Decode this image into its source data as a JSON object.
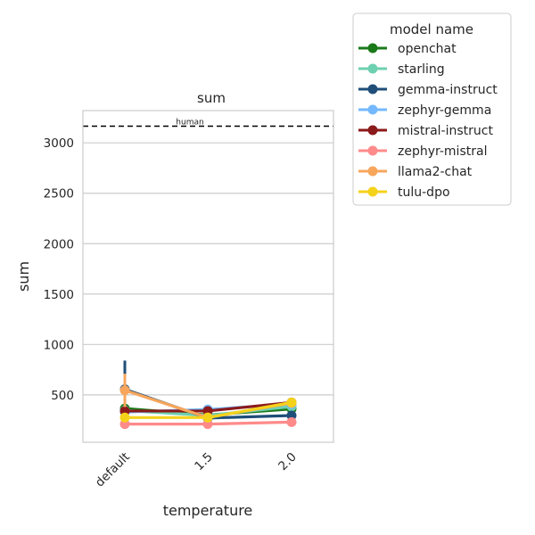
{
  "chart_data": {
    "type": "line",
    "title": "sum",
    "xlabel": "temperature",
    "ylabel": "sum",
    "categories": [
      "default",
      "1.5",
      "2.0"
    ],
    "ylim": [
      30,
      3320
    ],
    "yticks": [
      500,
      1000,
      1500,
      2000,
      2500,
      3000
    ],
    "grid": "horizontal",
    "reference_line": {
      "label": "human",
      "value": 3165,
      "style": "dashed",
      "color": "#000000"
    },
    "legend": {
      "title": "model name",
      "placement": "outside-right"
    },
    "series": [
      {
        "name": "openchat",
        "color": "#1a7a1a",
        "values": [
          365,
          300,
          360
        ],
        "errors": [
          [
            330,
            400
          ],
          null,
          null
        ]
      },
      {
        "name": "starling",
        "color": "#6dd0b0",
        "values": [
          345,
          295,
          385
        ],
        "errors": [
          null,
          null,
          null
        ]
      },
      {
        "name": "gemma-instruct",
        "color": "#1f4e79",
        "values": [
          555,
          270,
          295
        ],
        "errors": [
          [
            300,
            840
          ],
          null,
          null
        ]
      },
      {
        "name": "zephyr-gemma",
        "color": "#74b9ff",
        "values": [
          330,
          355,
          410
        ],
        "errors": [
          null,
          null,
          null
        ]
      },
      {
        "name": "mistral-instruct",
        "color": "#8b1a1a",
        "values": [
          340,
          340,
          425
        ],
        "errors": [
          null,
          null,
          null
        ]
      },
      {
        "name": "zephyr-mistral",
        "color": "#ff8a8a",
        "values": [
          210,
          210,
          230
        ],
        "errors": [
          null,
          null,
          null
        ]
      },
      {
        "name": "llama2-chat",
        "color": "#f8a65c",
        "values": [
          545,
          275,
          420
        ],
        "errors": [
          [
            380,
            710
          ],
          null,
          null
        ]
      },
      {
        "name": "tulu-dpo",
        "color": "#f5d21a",
        "values": [
          275,
          275,
          425
        ],
        "errors": [
          null,
          null,
          null
        ]
      }
    ]
  }
}
